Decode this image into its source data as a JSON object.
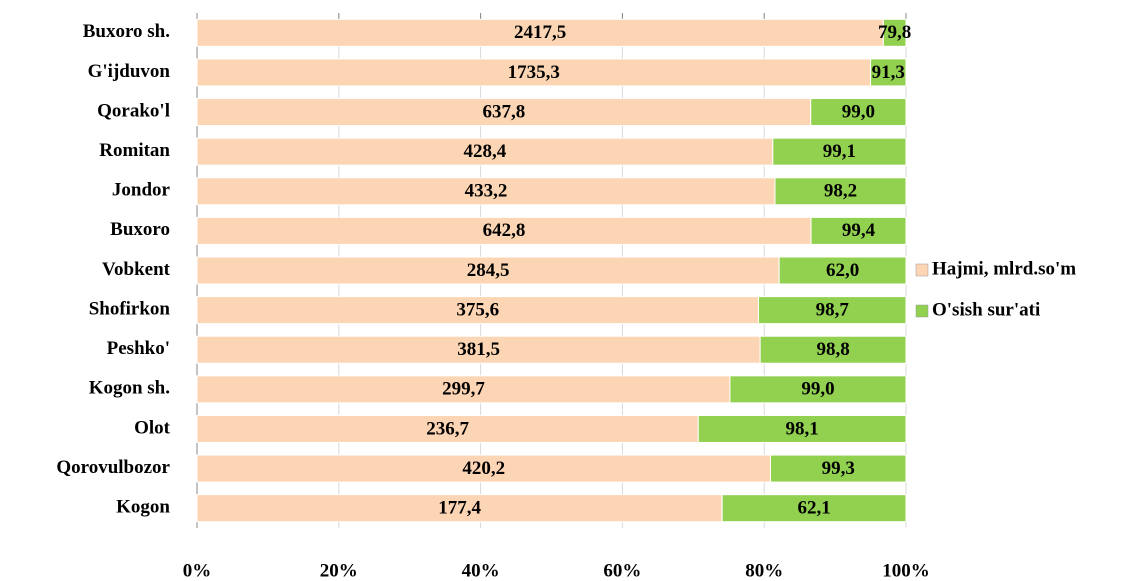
{
  "chart_data": {
    "type": "bar",
    "orientation": "horizontal",
    "stacked": "percent",
    "categories": [
      "Buxoro sh.",
      "G'ijduvon",
      "Qorako'l",
      "Romitan",
      "Jondor",
      "Buxoro",
      "Vobkent",
      "Shofirkon",
      "Peshko'",
      "Kogon sh.",
      "Olot",
      "Qorovulbozor",
      "Kogon"
    ],
    "series": [
      {
        "name": "Hajmi, mlrd.so'm",
        "color": "#fcd5b4",
        "values": [
          2417.5,
          1735.3,
          637.8,
          428.4,
          433.2,
          642.8,
          284.5,
          375.6,
          381.5,
          299.7,
          236.7,
          420.2,
          177.4
        ],
        "value_labels": [
          "2417,5",
          "1735,3",
          "637,8",
          "428,4",
          "433,2",
          "642,8",
          "284,5",
          "375,6",
          "381,5",
          "299,7",
          "236,7",
          "420,2",
          "177,4"
        ]
      },
      {
        "name": "O'sish sur'ati",
        "color": "#92d050",
        "values": [
          79.8,
          91.3,
          99.0,
          99.1,
          98.2,
          99.4,
          62.0,
          98.7,
          98.8,
          99.0,
          98.1,
          99.3,
          62.1
        ],
        "value_labels": [
          "79,8",
          "91,3",
          "99,0",
          "99,1",
          "98,2",
          "99,4",
          "62,0",
          "98,7",
          "98,8",
          "99,0",
          "98,1",
          "99,3",
          "62,1"
        ]
      }
    ],
    "xlim": [
      0,
      100
    ],
    "xticks": [
      {
        "value": 0,
        "label": "0%"
      },
      {
        "value": 20,
        "label": "20%"
      },
      {
        "value": 40,
        "label": "40%"
      },
      {
        "value": 60,
        "label": "60%"
      },
      {
        "value": 80,
        "label": "80%"
      },
      {
        "value": 100,
        "label": "100%"
      }
    ],
    "legend": "right"
  }
}
